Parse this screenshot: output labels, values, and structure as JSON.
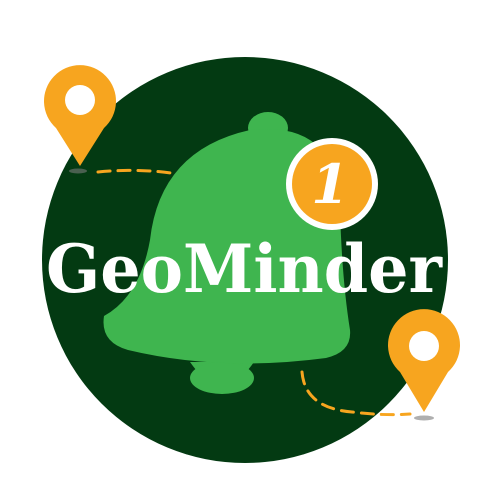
{
  "logo": {
    "wordmark": "GeoMinder",
    "badge_count": "1",
    "icon": "bell-icon",
    "pin_icon": "map-pin-icon"
  },
  "colors": {
    "background": "#ffffff",
    "circle": "#033a12",
    "bell": "#3fb54f",
    "accent": "#f7a51f",
    "wordmark": "#ffffff"
  }
}
